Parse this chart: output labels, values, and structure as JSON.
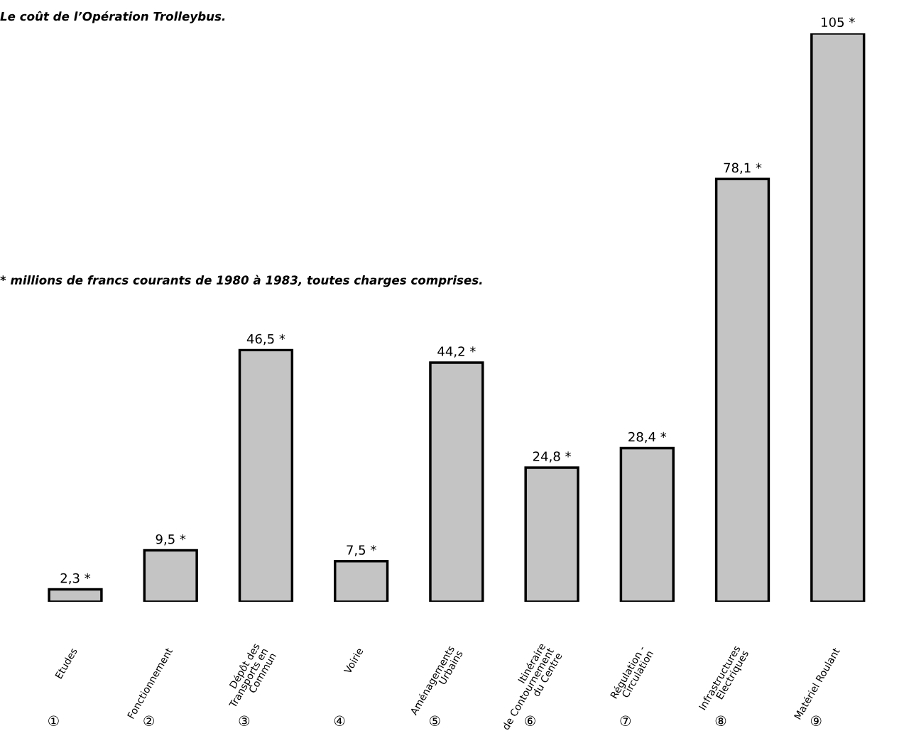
{
  "chart_data": {
    "type": "bar",
    "title": "Le coût de l’Opération Trolleybus.",
    "categories": [
      "Etudes",
      "Fonctionnement",
      "Dépôt des\nTransports en\nCommun",
      "Voirie",
      "Aménagements\nUrbains",
      "Itinéraire\nde Contournement\ndu Centre",
      "Régulation -\nCirculation",
      "Infrastructures\nElectriques",
      "Matériel Roulant"
    ],
    "values": [
      2.3,
      9.5,
      46.5,
      7.5,
      44.2,
      24.8,
      28.4,
      78.1,
      105
    ],
    "value_labels": [
      "2,3 *",
      "9,5 *",
      "46,5 *",
      "7,5 *",
      "44,2 *",
      "24,8 *",
      "28,4 *",
      "78,1 *",
      "105 *"
    ],
    "color": "#c4c4c4",
    "annotations": [
      "* millions de francs courants de 1980 à 1983, toutes charges comprises.",
      "①",
      "②",
      "③",
      "④",
      "⑤",
      "⑥",
      "⑦",
      "⑧",
      "⑨"
    ],
    "grid": false,
    "legend": false
  }
}
